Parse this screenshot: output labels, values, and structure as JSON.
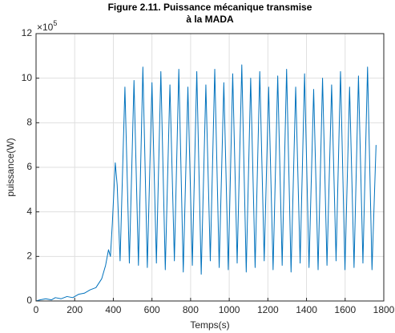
{
  "chart_data": {
    "type": "line",
    "title": [
      "Figure 2.11. Puissance mécanique transmise",
      "à la MADA"
    ],
    "xlabel": "Temps(s)",
    "ylabel": "puissance(W)",
    "y_exponent": {
      "base": "×10",
      "power": "5"
    },
    "xlim": [
      0,
      1800
    ],
    "xticks": [
      0,
      200,
      400,
      600,
      800,
      1000,
      1200,
      1400,
      1600,
      1800
    ],
    "ylim": [
      0,
      12
    ],
    "yticks": [
      0,
      2,
      4,
      6,
      8,
      10,
      12
    ],
    "grid": true,
    "series": [
      {
        "name": "puissance",
        "color": "#0072bd",
        "x": [
          0,
          20,
          50,
          80,
          100,
          130,
          160,
          190,
          220,
          250,
          280,
          310,
          340,
          360,
          375,
          385,
          395,
          410,
          420,
          435,
          460,
          483,
          507,
          530,
          553,
          576,
          600,
          623,
          646,
          669,
          693,
          716,
          739,
          762,
          786,
          809,
          832,
          855,
          879,
          902,
          925,
          948,
          972,
          995,
          1018,
          1041,
          1065,
          1088,
          1111,
          1134,
          1158,
          1181,
          1204,
          1227,
          1251,
          1274,
          1297,
          1320,
          1344,
          1367,
          1390,
          1413,
          1437,
          1460,
          1483,
          1506,
          1530,
          1553,
          1576,
          1599,
          1623,
          1646,
          1669,
          1692,
          1716,
          1739,
          1760
        ],
        "values": [
          0,
          0.05,
          0.1,
          0.05,
          0.15,
          0.1,
          0.2,
          0.15,
          0.3,
          0.35,
          0.5,
          0.6,
          1.0,
          1.6,
          2.3,
          2.0,
          3.5,
          6.2,
          5.2,
          1.8,
          9.6,
          1.7,
          9.9,
          1.6,
          10.5,
          1.5,
          9.8,
          1.7,
          10.3,
          1.4,
          9.7,
          1.8,
          10.4,
          1.3,
          9.6,
          1.6,
          10.3,
          1.2,
          9.7,
          1.8,
          10.4,
          1.5,
          9.8,
          1.4,
          10.2,
          1.7,
          10.6,
          1.3,
          10.0,
          1.5,
          10.3,
          1.8,
          9.6,
          1.4,
          10.1,
          1.6,
          10.4,
          1.3,
          9.6,
          1.7,
          10.2,
          1.5,
          9.5,
          1.4,
          10.0,
          1.6,
          9.7,
          1.8,
          10.3,
          1.4,
          9.6,
          1.5,
          10.1,
          1.7,
          10.5,
          1.4,
          7.0
        ]
      }
    ]
  }
}
